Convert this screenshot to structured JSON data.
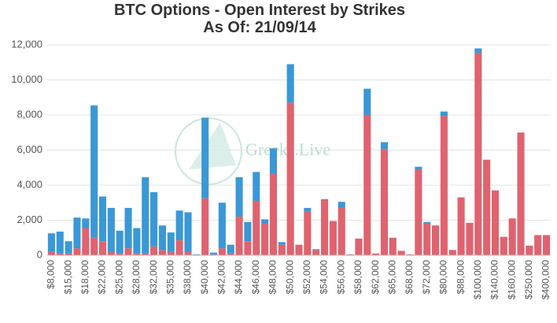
{
  "chart_data": {
    "type": "stacked_bar",
    "title": "BTC Options - Open Interest by Strikes",
    "subtitle": "As Of: 21/09/14",
    "watermark": "Greeks.Live",
    "categories": [
      "$8,000",
      null,
      "$15,000",
      null,
      "$18,000",
      null,
      "$22,000",
      null,
      "$25,000",
      null,
      "$28,000",
      null,
      "$32,000",
      null,
      "$35,000",
      null,
      "$38,000",
      null,
      "$40,000",
      null,
      "$42,000",
      null,
      "$44,000",
      null,
      "$46,000",
      null,
      "$48,000",
      null,
      "$50,000",
      null,
      "$52,000",
      null,
      "$54,000",
      null,
      "$56,000",
      null,
      "$58,000",
      null,
      "$62,000",
      null,
      "$65,000",
      null,
      "$68,000",
      null,
      "$72,000",
      null,
      "$80,000",
      null,
      "$88,000",
      null,
      "$100,000",
      null,
      "$140,000",
      null,
      "$160,000",
      null,
      "$250,000",
      null,
      "$400,000"
    ],
    "series": [
      {
        "color": "#e0636f",
        "values": [
          200,
          100,
          100,
          400,
          1550,
          1000,
          800,
          200,
          100,
          400,
          100,
          100,
          500,
          300,
          200,
          850,
          200,
          20,
          3250,
          50,
          400,
          100,
          2200,
          800,
          3100,
          1800,
          4650,
          600,
          8700,
          600,
          2500,
          300,
          3200,
          1950,
          2700,
          50,
          950,
          8000,
          100,
          6050,
          1000,
          250,
          50,
          4900,
          1800,
          1700,
          7950,
          300,
          3300,
          1850,
          11550,
          5450,
          3700,
          1050,
          2100,
          7000,
          550,
          1150,
          1150
        ]
      },
      {
        "color": "#3a98d6",
        "values": [
          1050,
          1250,
          700,
          1750,
          550,
          7550,
          2550,
          2500,
          1300,
          2300,
          1450,
          4350,
          3100,
          1400,
          1100,
          1700,
          2250,
          30,
          4600,
          100,
          2600,
          500,
          2250,
          1100,
          1650,
          250,
          1450,
          150,
          2200,
          0,
          200,
          50,
          0,
          0,
          350,
          0,
          0,
          1500,
          0,
          400,
          0,
          0,
          0,
          150,
          100,
          0,
          250,
          0,
          0,
          0,
          250,
          0,
          0,
          0,
          0,
          0,
          0,
          0,
          0
        ]
      }
    ],
    "ylim": [
      0,
      12000
    ],
    "yticks": [
      0,
      {
        "value": 2000,
        "label": "2,000"
      },
      {
        "value": 4000,
        "label": "4,000"
      },
      {
        "value": 6000,
        "label": "6,000"
      },
      {
        "value": 8000,
        "label": "8,000"
      },
      {
        "value": 10000,
        "label": "10,000"
      },
      {
        "value": 12000,
        "label": "12,000"
      }
    ],
    "grid": true
  }
}
